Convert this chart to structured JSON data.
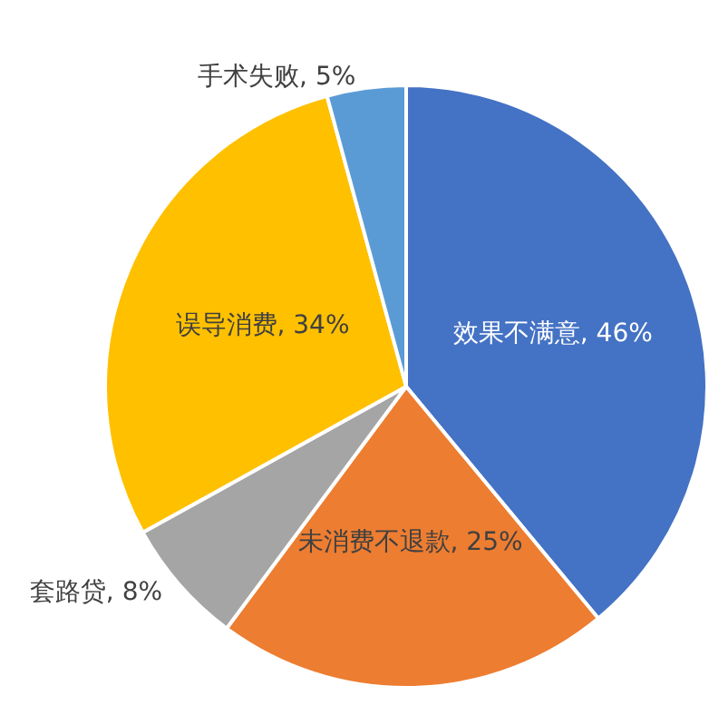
{
  "chart_data": {
    "type": "pie",
    "categories": [
      "效果不满意",
      "未消费不退款",
      "套路贷",
      "误导消费",
      "手术失败"
    ],
    "values": [
      46,
      25,
      8,
      34,
      5
    ],
    "value_labels": [
      "46%",
      "25%",
      "8%",
      "34%",
      "5%"
    ],
    "colors": [
      "#4472c4",
      "#ed7d31",
      "#a5a5a5",
      "#ffc000",
      "#5b9bd5"
    ],
    "legend": false
  }
}
